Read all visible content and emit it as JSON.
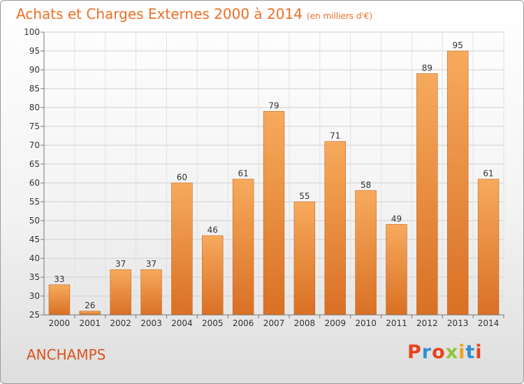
{
  "title": "Achats et Charges Externes 2000 à 2014",
  "unit": "(en milliers d'€)",
  "commune": "ANCHAMPS",
  "logo": {
    "text": "Proxiti",
    "colors": [
      "#e8431a",
      "#2f8fd6",
      "#e8431a",
      "#8cc63f",
      "#f0a21a",
      "#2f8fd6",
      "#e8431a"
    ]
  },
  "colors": {
    "bar_light": "#f5a55a",
    "bar_dark": "#db7427",
    "title": "#ec6f25",
    "commune": "#d9541c"
  },
  "chart_data": {
    "type": "bar",
    "categories": [
      "2000",
      "2001",
      "2002",
      "2003",
      "2004",
      "2005",
      "2006",
      "2007",
      "2008",
      "2009",
      "2010",
      "2011",
      "2012",
      "2013",
      "2014"
    ],
    "values": [
      33,
      26,
      37,
      37,
      60,
      46,
      61,
      79,
      55,
      71,
      58,
      49,
      89,
      95,
      61
    ],
    "ylim": [
      25,
      100
    ],
    "yticks": [
      25,
      30,
      35,
      40,
      45,
      50,
      55,
      60,
      65,
      70,
      75,
      80,
      85,
      90,
      95,
      100
    ],
    "grid": true,
    "data_labels": true
  }
}
